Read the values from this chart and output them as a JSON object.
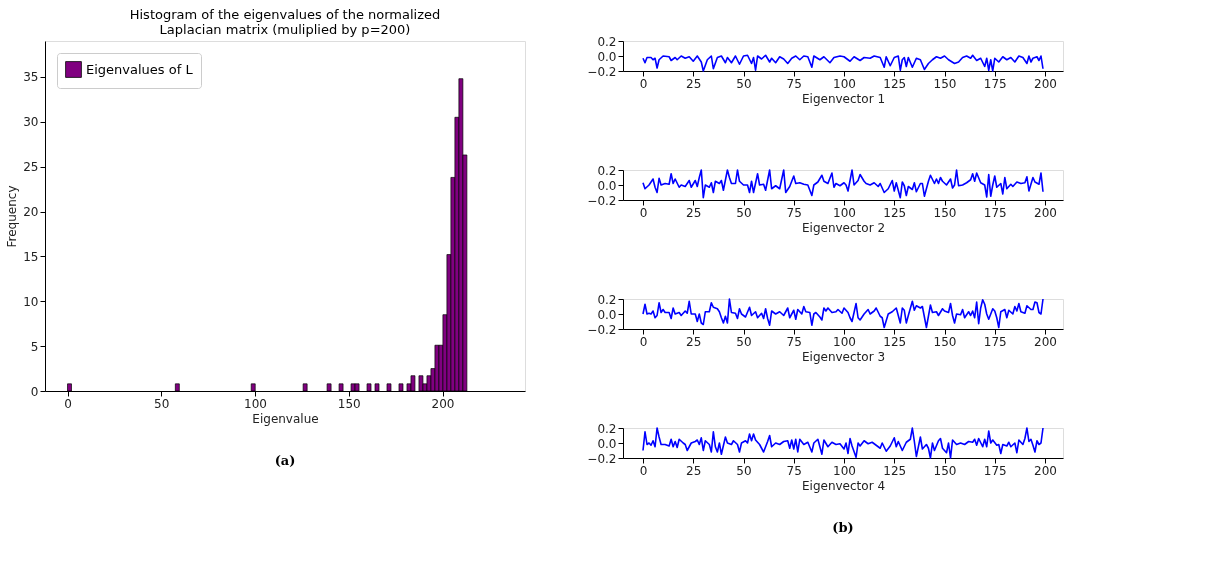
{
  "chart_data": [
    {
      "type": "histogram",
      "title": "Histogram of the eigenvalues of the normalized\nLaplacian matrix (muliplied by p=200)",
      "xlabel": "Eigenvalue",
      "ylabel": "Frequency",
      "bins": [
        0,
        2.13,
        4.26,
        6.39,
        8.52,
        10.65,
        12.78,
        14.91,
        17.04,
        19.17,
        21.3,
        23.43,
        25.56,
        27.69,
        29.82,
        31.95,
        34.08,
        36.21,
        38.34,
        40.47,
        42.6,
        44.73,
        46.86,
        48.99,
        51.12,
        53.25,
        55.38,
        57.51,
        59.64,
        61.77,
        63.9,
        66.03,
        68.16,
        70.29,
        72.42,
        74.55,
        76.68,
        78.81,
        80.94,
        83.07,
        85.2,
        87.33,
        89.46,
        91.59,
        93.72,
        95.85,
        97.98,
        100.11,
        102.24,
        104.37,
        106.5,
        108.63,
        110.76,
        112.89,
        115.02,
        117.15,
        119.28,
        121.41,
        123.54,
        125.67,
        127.8,
        129.93,
        132.06,
        134.19,
        136.32,
        138.45,
        140.58,
        142.71,
        144.84,
        146.97,
        149.1,
        151.23,
        153.36,
        155.49,
        157.62,
        159.75,
        161.88,
        164.01,
        166.14,
        168.27,
        170.4,
        172.53,
        174.66,
        176.79,
        178.92,
        181.05,
        183.18,
        185.31,
        187.44,
        189.57,
        191.7,
        193.83,
        195.96,
        198.09,
        200.22,
        202.35,
        204.48,
        206.61,
        208.74,
        210.87,
        213
      ],
      "series": [
        {
          "name": "Eigenvalues of L",
          "color": "#800080",
          "values": [
            0.8,
            0,
            0,
            0,
            0,
            0,
            0,
            0,
            0,
            0,
            0,
            0,
            0,
            0,
            0,
            0,
            0,
            0,
            0,
            0,
            0,
            0,
            0,
            0,
            0,
            0,
            0,
            0.8,
            0,
            0,
            0,
            0,
            0,
            0,
            0,
            0,
            0,
            0,
            0,
            0,
            0,
            0,
            0,
            0,
            0,
            0,
            0.8,
            0,
            0,
            0,
            0,
            0,
            0,
            0,
            0,
            0,
            0,
            0,
            0,
            0.8,
            0,
            0,
            0,
            0,
            0,
            0.8,
            0,
            0,
            0.8,
            0,
            0,
            0.8,
            0.8,
            0,
            0,
            0.8,
            0,
            0.8,
            0,
            0,
            0.8,
            0,
            0,
            0.8,
            0,
            0.8,
            1.7,
            0,
            1.7,
            0.8,
            1.7,
            2.5,
            5.1,
            5.1,
            8.5,
            15.2,
            23.8,
            30.5,
            34.8,
            26.3
          ]
        }
      ],
      "xlim": [
        -12,
        244
      ],
      "xticks": [
        0,
        50,
        100,
        150,
        200
      ],
      "ylim": [
        0,
        39
      ],
      "yticks": [
        0,
        5,
        10,
        15,
        20,
        25,
        30,
        35
      ],
      "grid": false,
      "legend": "top left",
      "annotations": [
        "(a)"
      ]
    },
    {
      "type": "line",
      "xlabel": "Eigenvector 1",
      "xlim": [
        -9.95,
        208.95
      ],
      "xticks": [
        0,
        25,
        50,
        75,
        100,
        125,
        150,
        175,
        200
      ],
      "ylim": [
        -0.2,
        0.2
      ],
      "yticks": [
        {
          "value": -0.2,
          "label": "−0.2"
        },
        {
          "value": 0,
          "label": "0.0"
        },
        {
          "value": 0.2,
          "label": "0.2"
        }
      ],
      "grid": false,
      "series": [
        {
          "color": "#0000ff",
          "x": [
            0,
            1,
            2,
            4,
            5,
            6,
            7,
            8,
            10,
            13,
            14,
            16,
            17,
            19,
            21,
            23,
            25,
            27,
            29,
            30,
            32,
            34,
            35,
            37,
            39,
            41,
            42,
            44,
            46,
            48,
            50,
            52,
            54,
            55,
            56,
            57,
            59,
            61,
            63,
            64,
            66,
            68,
            70,
            72,
            74,
            76,
            78,
            80,
            82,
            84,
            85,
            88,
            90,
            93,
            95,
            98,
            100,
            103,
            105,
            108,
            110,
            113,
            115,
            118,
            120,
            121,
            123,
            125,
            127,
            128,
            129,
            130,
            131,
            132,
            134,
            136,
            138,
            140,
            142,
            144,
            146,
            148,
            150,
            152,
            155,
            157,
            159,
            161,
            163,
            164,
            166,
            168,
            170,
            171,
            172,
            173,
            174,
            175,
            177,
            179,
            181,
            183,
            185,
            187,
            189,
            191,
            192,
            193,
            194,
            196,
            197,
            198,
            199
          ],
          "values": [
            -0.03,
            -0.09,
            -0.02,
            -0.02,
            -0.05,
            -0.03,
            -0.16,
            -0.05,
            0.0,
            -0.01,
            -0.06,
            -0.02,
            -0.05,
            0.0,
            -0.03,
            -0.01,
            -0.07,
            0.0,
            -0.08,
            -0.2,
            -0.05,
            0.0,
            -0.17,
            -0.02,
            0.0,
            -0.09,
            -0.02,
            -0.09,
            0.0,
            -0.11,
            0.0,
            0.01,
            -0.1,
            -0.02,
            -0.19,
            0.0,
            -0.04,
            0.01,
            -0.08,
            -0.03,
            -0.09,
            -0.01,
            -0.04,
            -0.1,
            -0.03,
            0.0,
            -0.05,
            0.0,
            -0.01,
            -0.15,
            0.0,
            -0.05,
            -0.01,
            -0.09,
            -0.02,
            0.0,
            -0.01,
            -0.07,
            -0.01,
            -0.06,
            -0.02,
            -0.03,
            0.0,
            -0.02,
            -0.15,
            -0.01,
            -0.13,
            -0.02,
            0.0,
            -0.19,
            -0.05,
            -0.02,
            -0.14,
            -0.02,
            -0.15,
            -0.03,
            -0.05,
            -0.18,
            -0.1,
            -0.05,
            -0.01,
            -0.03,
            0.0,
            -0.05,
            -0.1,
            -0.08,
            -0.02,
            0.0,
            -0.03,
            0.01,
            -0.06,
            -0.03,
            -0.14,
            -0.03,
            -0.19,
            -0.05,
            -0.2,
            -0.03,
            -0.08,
            -0.01,
            -0.05,
            -0.02,
            -0.08,
            0.0,
            -0.02,
            -0.1,
            0.0,
            -0.08,
            -0.03,
            -0.01,
            -0.06,
            0.0,
            -0.17
          ]
        }
      ]
    },
    {
      "type": "line",
      "xlabel": "Eigenvector 2",
      "xlim": [
        -9.95,
        208.95
      ],
      "xticks": [
        0,
        25,
        50,
        75,
        100,
        125,
        150,
        175,
        200
      ],
      "ylim": [
        -0.2,
        0.2
      ],
      "yticks": [
        {
          "value": -0.2,
          "label": "−0.2"
        },
        {
          "value": 0,
          "label": "0.0"
        },
        {
          "value": 0.2,
          "label": "0.2"
        }
      ],
      "grid": false,
      "series": [
        {
          "color": "#0000ff",
          "x": [
            0,
            1,
            3,
            5,
            6,
            7,
            8,
            9,
            11,
            13,
            14,
            15,
            16,
            18,
            19,
            21,
            23,
            24,
            26,
            27,
            28,
            29,
            30,
            31,
            33,
            34,
            35,
            36,
            38,
            39,
            40,
            42,
            43,
            44,
            46,
            47,
            48,
            50,
            52,
            53,
            54,
            55,
            57,
            58,
            60,
            61,
            63,
            64,
            66,
            68,
            70,
            71,
            73,
            75,
            76,
            78,
            80,
            82,
            84,
            85,
            87,
            89,
            90,
            92,
            94,
            95,
            96,
            98,
            100,
            101,
            102,
            104,
            105,
            107,
            108,
            110,
            111,
            113,
            115,
            117,
            118,
            120,
            122,
            124,
            125,
            126,
            128,
            129,
            130,
            131,
            132,
            134,
            135,
            136,
            138,
            139,
            140,
            142,
            143,
            145,
            146,
            147,
            148,
            149,
            151,
            153,
            154,
            155,
            156,
            157,
            159,
            161,
            163,
            164,
            165,
            166,
            168,
            170,
            171,
            172,
            173,
            174,
            175,
            176,
            178,
            179,
            180,
            181,
            183,
            184,
            186,
            188,
            190,
            191,
            192,
            194,
            195,
            197,
            198,
            199
          ],
          "values": [
            0.03,
            -0.05,
            0.0,
            0.08,
            -0.03,
            -0.1,
            0.09,
            0.0,
            0.02,
            0.01,
            0.15,
            0.02,
            0.08,
            -0.03,
            0.0,
            -0.02,
            0.06,
            -0.03,
            0.06,
            -0.02,
            0.1,
            0.2,
            -0.17,
            0.0,
            -0.03,
            0.03,
            -0.1,
            0.05,
            0.02,
            0.06,
            -0.07,
            0.2,
            0.1,
            0.02,
            0.02,
            0.2,
            0.05,
            0.0,
            0.0,
            -0.1,
            0.05,
            -0.1,
            0.15,
            0.0,
            0.01,
            -0.07,
            0.2,
            -0.05,
            -0.01,
            -0.05,
            0.2,
            -0.1,
            -0.02,
            0.12,
            0.02,
            0.03,
            0.01,
            0.0,
            -0.14,
            0.0,
            0.04,
            0.13,
            0.05,
            0.02,
            0.16,
            -0.03,
            0.02,
            -0.01,
            0.03,
            0.0,
            -0.08,
            0.2,
            0.0,
            0.06,
            0.14,
            0.05,
            0.02,
            0.0,
            0.03,
            -0.02,
            0.02,
            -0.1,
            -0.05,
            0.06,
            -0.08,
            0.03,
            -0.17,
            0.04,
            -0.01,
            -0.14,
            -0.02,
            -0.06,
            0.03,
            -0.09,
            0.02,
            0.02,
            -0.15,
            0.05,
            0.13,
            0.02,
            0.08,
            0.02,
            0.1,
            0.05,
            0.0,
            0.08,
            -0.04,
            0.0,
            0.2,
            -0.01,
            0.0,
            0.03,
            0.07,
            0.15,
            0.05,
            0.16,
            0.03,
            0.0,
            -0.16,
            0.14,
            -0.15,
            0.0,
            0.12,
            -0.03,
            0.02,
            -0.12,
            0.1,
            -0.05,
            0.01,
            -0.02,
            0.04,
            0.02,
            0.03,
            0.11,
            -0.08,
            0.1,
            0.04,
            0.01,
            0.16,
            -0.09
          ]
        }
      ]
    },
    {
      "type": "line",
      "xlabel": "Eigenvector 3",
      "xlim": [
        -9.95,
        208.95
      ],
      "xticks": [
        0,
        25,
        50,
        75,
        100,
        125,
        150,
        175,
        200
      ],
      "ylim": [
        -0.2,
        0.2
      ],
      "yticks": [
        {
          "value": -0.2,
          "label": "−0.2"
        },
        {
          "value": 0,
          "label": "0.0"
        },
        {
          "value": 0.2,
          "label": "0.2"
        }
      ],
      "grid": false,
      "series": [
        {
          "color": "#0000ff",
          "x": [
            0,
            1,
            2,
            3,
            4,
            5,
            6,
            7,
            8,
            9,
            10,
            11,
            13,
            14,
            15,
            16,
            18,
            19,
            21,
            22,
            23,
            24,
            26,
            27,
            28,
            29,
            30,
            31,
            33,
            34,
            35,
            37,
            38,
            39,
            40,
            41,
            42,
            43,
            44,
            46,
            47,
            48,
            49,
            51,
            53,
            54,
            56,
            57,
            59,
            60,
            61,
            62,
            63,
            64,
            66,
            68,
            70,
            72,
            73,
            74,
            75,
            76,
            77,
            79,
            80,
            81,
            83,
            84,
            85,
            86,
            88,
            89,
            90,
            91,
            92,
            94,
            96,
            97,
            99,
            100,
            102,
            103,
            104,
            106,
            107,
            108,
            110,
            112,
            113,
            115,
            116,
            118,
            119,
            120,
            122,
            124,
            126,
            128,
            129,
            130,
            131,
            132,
            134,
            135,
            136,
            138,
            139,
            141,
            143,
            144,
            146,
            147,
            149,
            150,
            152,
            153,
            154,
            155,
            156,
            158,
            159,
            160,
            162,
            163,
            164,
            165,
            166,
            167,
            168,
            169,
            170,
            171,
            172,
            174,
            175,
            176,
            177,
            178,
            180,
            181,
            182,
            184,
            185,
            186,
            187,
            188,
            190,
            191,
            193,
            194,
            195,
            196,
            197,
            198,
            199
          ],
          "values": [
            0.0,
            0.13,
            0.0,
            0.01,
            0.0,
            0.04,
            -0.05,
            -0.02,
            0.15,
            0.02,
            0.06,
            0.02,
            0.02,
            -0.06,
            0.08,
            0.0,
            0.02,
            -0.02,
            0.04,
            0.01,
            0.17,
            0.0,
            0.0,
            -0.1,
            0.0,
            -0.12,
            -0.14,
            0.03,
            0.03,
            0.15,
            0.09,
            0.07,
            0.03,
            -0.05,
            -0.12,
            -0.03,
            -0.12,
            0.2,
            0.02,
            0.01,
            -0.06,
            0.07,
            0.0,
            -0.04,
            0.09,
            -0.02,
            0.03,
            -0.05,
            0.01,
            -0.06,
            0.07,
            -0.06,
            -0.15,
            0.04,
            0.0,
            0.03,
            -0.02,
            0.08,
            -0.05,
            0.0,
            0.05,
            -0.07,
            0.06,
            0.0,
            0.1,
            0.03,
            0.02,
            -0.15,
            0.0,
            0.02,
            -0.04,
            -0.08,
            0.08,
            0.04,
            0.08,
            0.02,
            0.03,
            0.06,
            0.01,
            0.08,
            0.02,
            -0.05,
            -0.1,
            0.14,
            -0.05,
            -0.08,
            0.0,
            0.06,
            0.0,
            0.04,
            0.08,
            -0.03,
            -0.05,
            -0.18,
            0.0,
            0.03,
            0.08,
            -0.12,
            0.08,
            0.05,
            -0.12,
            -0.02,
            0.17,
            0.05,
            0.11,
            0.08,
            0.1,
            -0.18,
            0.12,
            0.02,
            0.03,
            -0.02,
            0.07,
            0.04,
            0.02,
            0.14,
            -0.02,
            -0.12,
            0.0,
            -0.01,
            0.06,
            -0.05,
            0.03,
            -0.02,
            0.04,
            -0.05,
            0.16,
            -0.13,
            0.08,
            0.19,
            0.13,
            0.0,
            -0.07,
            0.07,
            0.04,
            -0.05,
            -0.18,
            0.03,
            0.06,
            -0.05,
            0.05,
            0.0,
            0.1,
            0.04,
            0.14,
            0.03,
            0.01,
            0.11,
            0.06,
            0.06,
            0.16,
            0.15,
            0.02,
            0.0,
            0.2
          ]
        }
      ]
    },
    {
      "type": "line",
      "xlabel": "Eigenvector 4",
      "xlim": [
        -9.95,
        208.95
      ],
      "xticks": [
        0,
        25,
        50,
        75,
        100,
        125,
        150,
        175,
        200
      ],
      "ylim": [
        -0.2,
        0.2
      ],
      "yticks": [
        {
          "value": -0.2,
          "label": "−0.2"
        },
        {
          "value": 0,
          "label": "0.0"
        },
        {
          "value": 0.2,
          "label": "0.2"
        }
      ],
      "grid": false,
      "annotations": [
        "(b)"
      ],
      "series": [
        {
          "color": "#0000ff",
          "x": [
            0,
            1,
            2,
            3,
            4,
            5,
            6,
            7,
            8,
            9,
            11,
            13,
            14,
            15,
            16,
            17,
            18,
            20,
            21,
            22,
            24,
            26,
            27,
            28,
            29,
            30,
            31,
            33,
            34,
            35,
            36,
            37,
            38,
            39,
            41,
            42,
            44,
            45,
            47,
            48,
            49,
            51,
            52,
            53,
            54,
            55,
            56,
            58,
            60,
            62,
            63,
            64,
            66,
            68,
            70,
            72,
            73,
            74,
            75,
            76,
            77,
            78,
            80,
            82,
            84,
            85,
            87,
            89,
            90,
            92,
            94,
            96,
            98,
            100,
            101,
            102,
            103,
            104,
            106,
            107,
            108,
            110,
            112,
            114,
            116,
            118,
            119,
            121,
            123,
            125,
            126,
            127,
            129,
            131,
            133,
            134,
            135,
            136,
            137,
            138,
            139,
            141,
            142,
            143,
            144,
            145,
            147,
            148,
            149,
            151,
            152,
            153,
            154,
            156,
            158,
            160,
            162,
            164,
            165,
            166,
            167,
            169,
            170,
            171,
            172,
            173,
            174,
            176,
            177,
            178,
            179,
            181,
            182,
            183,
            185,
            186,
            187,
            189,
            190,
            191,
            192,
            193,
            194,
            195,
            196,
            197,
            198,
            199
          ],
          "values": [
            -0.1,
            0.15,
            -0.02,
            0.0,
            -0.03,
            0.03,
            -0.05,
            0.2,
            0.08,
            -0.02,
            -0.02,
            -0.04,
            0.05,
            -0.05,
            0.02,
            -0.06,
            0.05,
            0.0,
            -0.02,
            -0.1,
            0.0,
            0.02,
            0.04,
            -0.02,
            0.07,
            -0.1,
            0.03,
            -0.02,
            -0.12,
            0.15,
            -0.05,
            -0.12,
            0.0,
            -0.15,
            0.08,
            0.0,
            -0.02,
            0.03,
            -0.02,
            -0.12,
            0.0,
            0.03,
            0.0,
            0.12,
            0.03,
            0.12,
            0.04,
            -0.02,
            -0.12,
            0.02,
            0.1,
            -0.05,
            0.0,
            -0.02,
            0.02,
            0.03,
            -0.07,
            0.04,
            -0.08,
            0.05,
            -0.12,
            0.05,
            -0.02,
            0.01,
            -0.12,
            0.0,
            0.05,
            -0.15,
            0.04,
            -0.05,
            0.01,
            -0.02,
            -0.01,
            -0.08,
            0.0,
            -0.14,
            0.06,
            -0.04,
            -0.19,
            0.0,
            -0.04,
            0.03,
            -0.01,
            0.01,
            -0.03,
            -0.07,
            0.0,
            -0.11,
            -0.04,
            0.07,
            -0.05,
            0.02,
            -0.1,
            0.01,
            0.05,
            0.2,
            0.02,
            -0.18,
            -0.05,
            0.08,
            -0.08,
            -0.02,
            -0.07,
            -0.2,
            0.0,
            -0.1,
            0.03,
            0.06,
            -0.07,
            -0.13,
            0.0,
            -0.2,
            0.04,
            -0.02,
            0.0,
            -0.02,
            0.02,
            0.01,
            0.05,
            -0.03,
            0.06,
            -0.05,
            0.05,
            -0.05,
            0.16,
            0.0,
            0.04,
            -0.03,
            -0.02,
            -0.14,
            -0.02,
            -0.04,
            0.01,
            -0.05,
            0.0,
            -0.13,
            0.04,
            -0.02,
            0.06,
            0.2,
            0.02,
            0.05,
            -0.03,
            -0.12,
            0.03,
            -0.02,
            0.0,
            0.2
          ]
        }
      ]
    }
  ]
}
